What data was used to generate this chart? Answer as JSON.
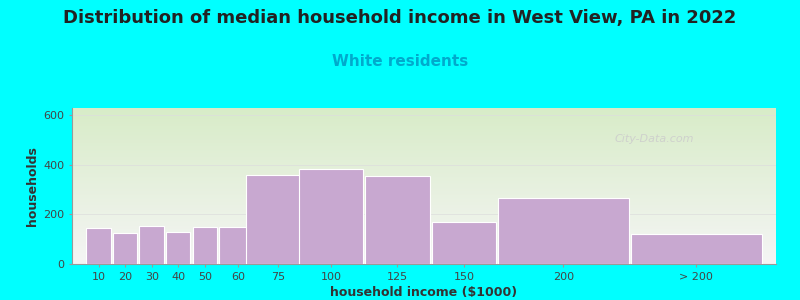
{
  "title": "Distribution of median household income in West View, PA in 2022",
  "subtitle": "White residents",
  "xlabel": "household income ($1000)",
  "ylabel": "households",
  "bar_labels": [
    "10",
    "20",
    "30",
    "40",
    "50",
    "60",
    "75",
    "100",
    "125",
    "150",
    "200",
    "> 200"
  ],
  "bar_widths": [
    10,
    10,
    10,
    10,
    10,
    15,
    25,
    25,
    25,
    25,
    50,
    50
  ],
  "bar_left_edges": [
    5,
    15,
    25,
    35,
    45,
    55,
    65,
    85,
    110,
    135,
    160,
    210
  ],
  "bar_heights": [
    145,
    125,
    155,
    130,
    150,
    150,
    360,
    385,
    355,
    170,
    265,
    120
  ],
  "bar_color": "#C8A8D0",
  "bar_edgecolor": "#ffffff",
  "background_color": "#00FFFF",
  "plot_bg_top_color": "#d8ecc8",
  "plot_bg_bottom_color": "#f5f5f5",
  "title_fontsize": 13,
  "subtitle_fontsize": 11,
  "subtitle_color": "#00AACC",
  "axis_label_fontsize": 9,
  "tick_label_fontsize": 8,
  "ylim": [
    0,
    630
  ],
  "yticks": [
    0,
    200,
    400,
    600
  ],
  "watermark": "City-Data.com",
  "xlim_left": 0,
  "xlim_right": 265
}
